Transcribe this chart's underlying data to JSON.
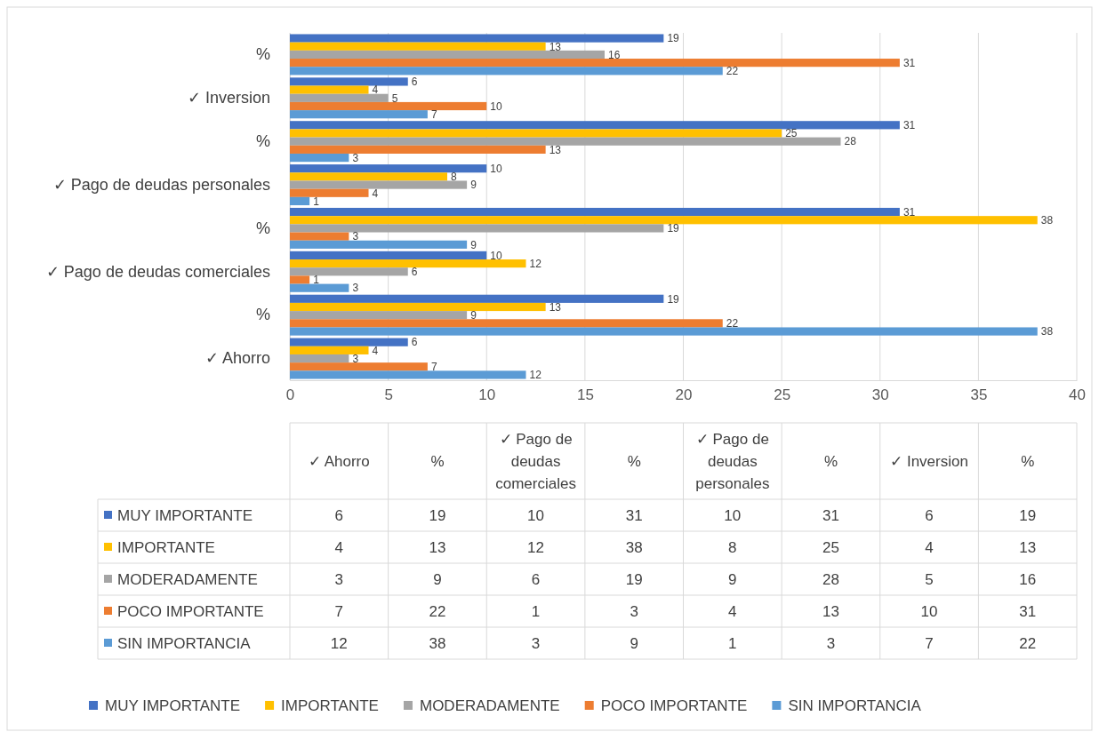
{
  "chart_data": {
    "type": "bar",
    "orientation": "horizontal",
    "categories": [
      "%",
      "✓ Inversion",
      "%",
      "✓ Pago de deudas personales",
      "%",
      "✓ Pago de deudas comerciales",
      "%",
      "✓  Ahorro"
    ],
    "series": [
      {
        "name": "MUY IMPORTANTE",
        "color": "#4472c4",
        "values": [
          19,
          6,
          31,
          10,
          31,
          10,
          19,
          6
        ],
        "value_labels": [
          "19",
          "6",
          "31",
          "10",
          "31",
          "10",
          "19",
          "6"
        ]
      },
      {
        "name": "IMPORTANTE",
        "color": "#ffc000",
        "values": [
          13,
          4,
          25,
          8,
          38,
          12,
          13,
          4
        ],
        "value_labels": [
          "13",
          "4",
          "25",
          "8",
          "38",
          "12",
          "13",
          "4"
        ]
      },
      {
        "name": "MODERADAMENTE",
        "color": "#a5a5a5",
        "values": [
          16,
          5,
          28,
          9,
          19,
          6,
          9,
          3
        ],
        "value_labels": [
          "16",
          "5",
          "28",
          "9",
          "19",
          "6",
          "9",
          "3"
        ]
      },
      {
        "name": "POCO IMPORTANTE",
        "color": "#ed7d31",
        "values": [
          31,
          10,
          13,
          4,
          3,
          1,
          22,
          7
        ],
        "value_labels": [
          "31",
          "10",
          "13",
          "4",
          "3",
          "1",
          "22",
          "7"
        ]
      },
      {
        "name": "SIN IMPORTANCIA",
        "color": "#5b9bd5",
        "values": [
          22,
          7,
          3,
          1,
          9,
          3,
          38,
          12
        ],
        "value_labels": [
          "22",
          "7",
          "3",
          "1",
          "9",
          "3",
          "38",
          "12"
        ]
      }
    ],
    "xlim": [
      0,
      40
    ],
    "xticks": [
      0,
      5,
      10,
      15,
      20,
      25,
      30,
      35,
      40
    ],
    "grid": "x",
    "legend": "bottom"
  }
}
